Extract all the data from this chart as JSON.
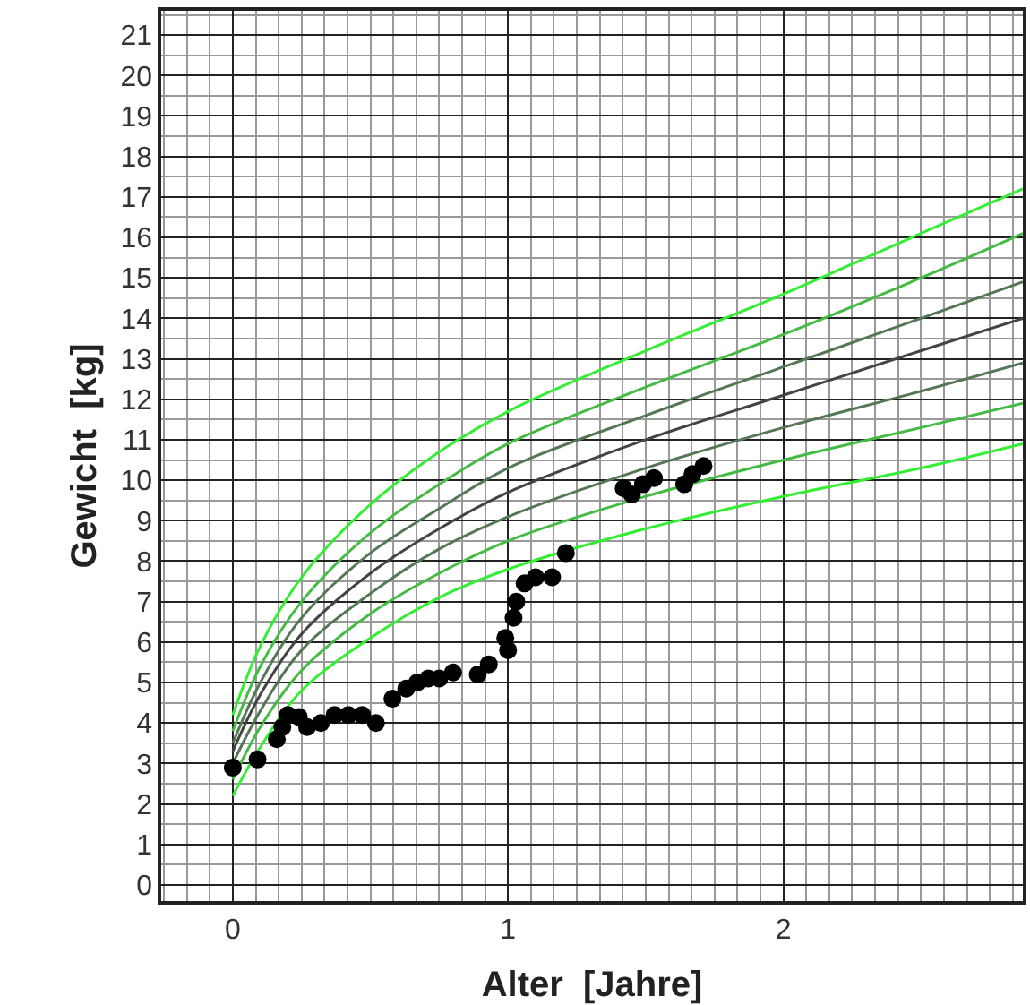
{
  "chart_data": {
    "type": "scatter",
    "xlabel": "Alter  [Jahre]",
    "ylabel": "Gewicht  [kg]",
    "xlim": [
      -0.26,
      2.87
    ],
    "ylim": [
      -0.4,
      21.6
    ],
    "xticks": [
      0,
      1,
      2
    ],
    "yticks": [
      0,
      1,
      2,
      3,
      4,
      5,
      6,
      7,
      8,
      9,
      10,
      11,
      12,
      13,
      14,
      15,
      16,
      17,
      18,
      19,
      20,
      21
    ],
    "grid": true,
    "legend": false,
    "series": [
      {
        "type": "line",
        "color": "#33ee33",
        "x": [
          0,
          0.1,
          0.25,
          0.5,
          0.75,
          1,
          1.5,
          2,
          2.5,
          2.87
        ],
        "values": [
          4.2,
          5.9,
          7.6,
          9.4,
          10.7,
          11.7,
          13.2,
          14.6,
          16.1,
          17.2
        ]
      },
      {
        "type": "line",
        "color": "#44bb44",
        "x": [
          0,
          0.1,
          0.25,
          0.5,
          0.75,
          1,
          1.5,
          2,
          2.5,
          2.87
        ],
        "values": [
          3.8,
          5.4,
          7.0,
          8.7,
          9.9,
          10.9,
          12.3,
          13.6,
          15.0,
          16.1
        ]
      },
      {
        "type": "line",
        "color": "#557755",
        "x": [
          0,
          0.1,
          0.25,
          0.5,
          0.75,
          1,
          1.5,
          2,
          2.5,
          2.87
        ],
        "values": [
          3.5,
          5.0,
          6.6,
          8.2,
          9.3,
          10.3,
          11.6,
          12.8,
          14.0,
          14.9
        ]
      },
      {
        "type": "line",
        "color": "#444444",
        "x": [
          0,
          0.1,
          0.25,
          0.5,
          0.75,
          1,
          1.5,
          2,
          2.5,
          2.87
        ],
        "values": [
          3.3,
          4.7,
          6.2,
          7.7,
          8.8,
          9.7,
          11.0,
          12.1,
          13.2,
          14.0
        ]
      },
      {
        "type": "line",
        "color": "#557755",
        "x": [
          0,
          0.1,
          0.25,
          0.5,
          0.75,
          1,
          1.5,
          2,
          2.5,
          2.87
        ],
        "values": [
          3.0,
          4.3,
          5.8,
          7.2,
          8.3,
          9.1,
          10.3,
          11.3,
          12.2,
          12.9
        ]
      },
      {
        "type": "line",
        "color": "#44bb44",
        "x": [
          0,
          0.1,
          0.25,
          0.5,
          0.75,
          1,
          1.5,
          2,
          2.5,
          2.87
        ],
        "values": [
          2.6,
          3.9,
          5.3,
          6.7,
          7.7,
          8.5,
          9.6,
          10.5,
          11.3,
          11.9
        ]
      },
      {
        "type": "line",
        "color": "#33ee33",
        "x": [
          0,
          0.1,
          0.25,
          0.5,
          0.75,
          1,
          1.5,
          2,
          2.5,
          2.87
        ],
        "values": [
          2.2,
          3.4,
          4.8,
          6.1,
          7.1,
          7.8,
          8.8,
          9.6,
          10.3,
          10.9
        ]
      },
      {
        "color": "#000000",
        "marker": "circle",
        "x": [
          0,
          0.09,
          0.16,
          0.18,
          0.2,
          0.24,
          0.27,
          0.32,
          0.37,
          0.42,
          0.47,
          0.52,
          0.58,
          0.63,
          0.67,
          0.71,
          0.75,
          0.8,
          0.89,
          0.93,
          0.99,
          1.0,
          1.02,
          1.03,
          1.06,
          1.1,
          1.16,
          1.21,
          1.42,
          1.45,
          1.49,
          1.53,
          1.64,
          1.67,
          1.71
        ],
        "values": [
          2.9,
          3.1,
          3.6,
          3.9,
          4.2,
          4.15,
          3.9,
          4.0,
          4.2,
          4.2,
          4.2,
          4.0,
          4.6,
          4.85,
          5.0,
          5.1,
          5.1,
          5.25,
          5.2,
          5.45,
          6.1,
          5.8,
          6.6,
          7.0,
          7.45,
          7.6,
          7.6,
          8.2,
          9.8,
          9.65,
          9.9,
          10.05,
          9.9,
          10.15,
          10.35
        ]
      }
    ]
  }
}
